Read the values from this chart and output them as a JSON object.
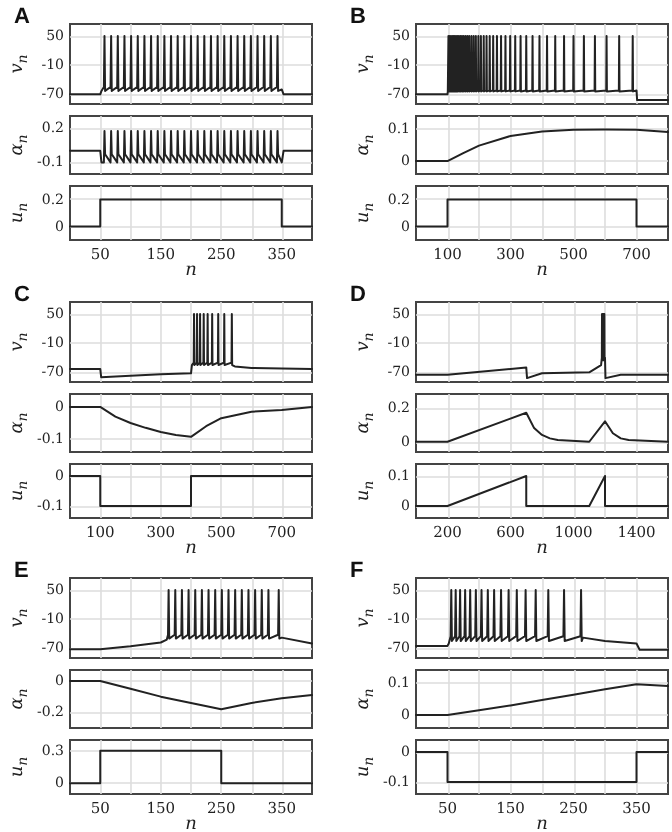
{
  "chart_data": [
    {
      "type": "line",
      "title": "A",
      "ylabel": "v$_{n}$",
      "color": "#222222",
      "grid": true,
      "tick_labels": "y",
      "xlim": [
        0,
        400
      ],
      "xticks": [
        50,
        {
          "value": 100,
          "label": null
        },
        150,
        {
          "value": 200,
          "label": null
        },
        250,
        {
          "value": 300,
          "label": null
        },
        350
      ],
      "ylim": [
        -90,
        75
      ],
      "yticks": [
        -70,
        -10,
        50
      ],
      "x": [
        0,
        50,
        52,
        56,
        57,
        58,
        67,
        68,
        69,
        78,
        79,
        80,
        89,
        90,
        91,
        100,
        101,
        102,
        111,
        112,
        113,
        122,
        123,
        124,
        133,
        134,
        135,
        144,
        145,
        146,
        155,
        156,
        157,
        166,
        167,
        168,
        177,
        178,
        179,
        188,
        189,
        190,
        199,
        200,
        201,
        210,
        211,
        212,
        221,
        222,
        223,
        232,
        233,
        234,
        243,
        244,
        245,
        254,
        255,
        256,
        265,
        266,
        267,
        276,
        277,
        278,
        287,
        288,
        289,
        298,
        299,
        300,
        309,
        310,
        311,
        320,
        321,
        322,
        331,
        332,
        333,
        342,
        343,
        344,
        350,
        353,
        400
      ],
      "values": [
        -70,
        -70,
        -63,
        -55,
        50,
        -63,
        -55,
        50,
        -63,
        -55,
        50,
        -63,
        -55,
        50,
        -63,
        -55,
        50,
        -63,
        -55,
        50,
        -63,
        -55,
        50,
        -63,
        -55,
        50,
        -63,
        -55,
        50,
        -63,
        -55,
        50,
        -63,
        -55,
        50,
        -63,
        -55,
        50,
        -63,
        -55,
        50,
        -63,
        -55,
        50,
        -63,
        -55,
        50,
        -63,
        -55,
        50,
        -63,
        -55,
        50,
        -63,
        -55,
        50,
        -63,
        -55,
        50,
        -63,
        -55,
        50,
        -63,
        -55,
        50,
        -63,
        -55,
        50,
        -63,
        -55,
        50,
        -63,
        -55,
        50,
        -63,
        -55,
        50,
        -63,
        -55,
        50,
        -63,
        -55,
        50,
        -63,
        -60,
        -70,
        -70
      ]
    },
    {
      "type": "line",
      "ylabel": "α$_{n}$",
      "color": "#222222",
      "grid": true,
      "tick_labels": "y",
      "xlim": [
        0,
        400
      ],
      "xticks": [
        50,
        {
          "value": 100,
          "label": null
        },
        150,
        {
          "value": 200,
          "label": null
        },
        250,
        {
          "value": 300,
          "label": null
        },
        350
      ],
      "ylim": [
        -0.2,
        0.3
      ],
      "yticks": [
        -0.1,
        0.2
      ],
      "x": [
        0,
        50,
        52,
        56,
        57,
        58,
        67,
        68,
        69,
        78,
        79,
        80,
        89,
        90,
        91,
        100,
        101,
        102,
        111,
        112,
        113,
        122,
        123,
        124,
        133,
        134,
        135,
        144,
        145,
        146,
        155,
        156,
        157,
        166,
        167,
        168,
        177,
        178,
        179,
        188,
        189,
        190,
        199,
        200,
        201,
        210,
        211,
        212,
        221,
        222,
        223,
        232,
        233,
        234,
        243,
        244,
        245,
        254,
        255,
        256,
        265,
        266,
        267,
        276,
        277,
        278,
        287,
        288,
        289,
        298,
        299,
        300,
        309,
        310,
        311,
        320,
        321,
        322,
        331,
        332,
        333,
        342,
        343,
        344,
        350,
        353,
        400
      ],
      "values": [
        0,
        0,
        -0.1,
        -0.1,
        0.17,
        -0.03,
        -0.1,
        0.17,
        -0.03,
        -0.1,
        0.17,
        -0.03,
        -0.1,
        0.17,
        -0.03,
        -0.1,
        0.17,
        -0.03,
        -0.1,
        0.17,
        -0.03,
        -0.1,
        0.17,
        -0.03,
        -0.1,
        0.17,
        -0.03,
        -0.1,
        0.17,
        -0.03,
        -0.1,
        0.17,
        -0.03,
        -0.1,
        0.17,
        -0.03,
        -0.1,
        0.17,
        -0.03,
        -0.1,
        0.17,
        -0.03,
        -0.1,
        0.17,
        -0.03,
        -0.1,
        0.17,
        -0.03,
        -0.1,
        0.17,
        -0.03,
        -0.1,
        0.17,
        -0.03,
        -0.1,
        0.17,
        -0.03,
        -0.1,
        0.17,
        -0.03,
        -0.1,
        0.17,
        -0.03,
        -0.1,
        0.17,
        -0.03,
        -0.1,
        0.17,
        -0.03,
        -0.1,
        0.17,
        -0.03,
        -0.1,
        0.17,
        -0.03,
        -0.1,
        0.17,
        -0.03,
        -0.1,
        0.17,
        -0.03,
        -0.1,
        0.17,
        -0.03,
        -0.1,
        0,
        0
      ]
    },
    {
      "type": "step",
      "ylabel": "u$_{n}$",
      "xlabel": "n",
      "color": "#222222",
      "grid": true,
      "xlim": [
        0,
        400
      ],
      "xticks": [
        50,
        {
          "value": 100,
          "label": null
        },
        150,
        {
          "value": 200,
          "label": null
        },
        250,
        {
          "value": 300,
          "label": null
        },
        350
      ],
      "ylim": [
        -0.1,
        0.3
      ],
      "yticks": [
        0,
        0.2
      ],
      "x": [
        0,
        50,
        350,
        400
      ],
      "values": [
        0,
        0.2,
        0,
        0
      ]
    },
    {
      "type": "line",
      "title": "B",
      "ylabel": "v$_{n}$",
      "color": "#222222",
      "grid": true,
      "tick_labels": "y",
      "xlim": [
        0,
        800
      ],
      "xticks": [
        100,
        {
          "value": 200,
          "label": null
        },
        300,
        {
          "value": 400,
          "label": null
        },
        500,
        {
          "value": 600,
          "label": null
        },
        700
      ],
      "ylim": [
        -90,
        75
      ],
      "yticks": [
        -70,
        -10,
        50
      ],
      "x": [
        0,
        100,
        101,
        102,
        103,
        104,
        106,
        107,
        108,
        110,
        111,
        112,
        114,
        115,
        116,
        118,
        119,
        120,
        122,
        123,
        124,
        126,
        127,
        128,
        130,
        131,
        132,
        135,
        136,
        137,
        140,
        141,
        142,
        145,
        146,
        147,
        150,
        151,
        152,
        156,
        157,
        158,
        162,
        163,
        164,
        168,
        169,
        170,
        175,
        176,
        177,
        182,
        183,
        184,
        189,
        190,
        191,
        197,
        198,
        199,
        205,
        206,
        207,
        214,
        215,
        216,
        223,
        224,
        225,
        233,
        234,
        235,
        244,
        245,
        246,
        256,
        257,
        258,
        269,
        270,
        271,
        283,
        284,
        285,
        298,
        299,
        300,
        314,
        315,
        316,
        331,
        332,
        333,
        349,
        350,
        351,
        369,
        370,
        371,
        391,
        392,
        393,
        415,
        416,
        417,
        441,
        442,
        443,
        469,
        470,
        471,
        499,
        500,
        501,
        532,
        533,
        534,
        567,
        568,
        569,
        604,
        605,
        606,
        644,
        645,
        646,
        687,
        688,
        689,
        700,
        702,
        800
      ],
      "values": [
        -70,
        -70,
        -64,
        -62,
        50,
        -64,
        -62,
        50,
        -64,
        -62,
        50,
        -64,
        -62,
        50,
        -64,
        -62,
        50,
        -64,
        -62,
        50,
        -64,
        -62,
        50,
        -64,
        -62,
        50,
        -64,
        -62,
        50,
        -64,
        -62,
        50,
        -64,
        -62,
        50,
        -64,
        -62,
        50,
        -64,
        -62,
        50,
        -64,
        -62,
        50,
        -64,
        -62,
        50,
        -64,
        -62,
        50,
        -64,
        -62,
        50,
        -64,
        -62,
        50,
        -64,
        -62,
        50,
        -64,
        -62,
        50,
        -64,
        -62,
        50,
        -64,
        -62,
        50,
        -64,
        -62,
        50,
        -64,
        -62,
        50,
        -64,
        -62,
        50,
        -64,
        -62,
        50,
        -64,
        -62,
        50,
        -64,
        -62,
        50,
        -64,
        -62,
        50,
        -64,
        -62,
        50,
        -64,
        -62,
        50,
        -64,
        -62,
        50,
        -64,
        -62,
        50,
        -64,
        -62,
        50,
        -64,
        -62,
        50,
        -64,
        -62,
        50,
        -64,
        -62,
        50,
        -64,
        -62,
        50,
        -64,
        -62,
        50,
        -64,
        -62,
        50,
        -64,
        -62,
        50,
        -64,
        -62,
        50,
        -64,
        -62,
        -82,
        -82
      ]
    },
    {
      "type": "line",
      "ylabel": "α$_{n}$",
      "color": "#222222",
      "grid": true,
      "tick_labels": "y",
      "xlim": [
        0,
        800
      ],
      "xticks": [
        100,
        {
          "value": 200,
          "label": null
        },
        300,
        {
          "value": 400,
          "label": null
        },
        500,
        {
          "value": 600,
          "label": null
        },
        700
      ],
      "ylim": [
        -0.04,
        0.14
      ],
      "yticks": [
        0,
        0.1
      ],
      "x": [
        0,
        100,
        150,
        200,
        300,
        400,
        500,
        600,
        700,
        800
      ],
      "values": [
        0,
        0,
        0.025,
        0.048,
        0.078,
        0.092,
        0.097,
        0.098,
        0.097,
        0.09
      ]
    },
    {
      "type": "step",
      "ylabel": "u$_{n}$",
      "xlabel": "n",
      "color": "#222222",
      "grid": true,
      "xlim": [
        0,
        800
      ],
      "xticks": [
        100,
        {
          "value": 200,
          "label": null
        },
        300,
        {
          "value": 400,
          "label": null
        },
        500,
        {
          "value": 600,
          "label": null
        },
        700
      ],
      "ylim": [
        -0.1,
        0.3
      ],
      "yticks": [
        0,
        0.2
      ],
      "x": [
        0,
        100,
        700,
        800
      ],
      "values": [
        0,
        0.2,
        0,
        0
      ]
    },
    {
      "type": "line",
      "title": "C",
      "ylabel": "v$_{n}$",
      "color": "#222222",
      "grid": true,
      "tick_labels": "y",
      "xlim": [
        0,
        800
      ],
      "xticks": [
        100,
        {
          "value": 200,
          "label": null
        },
        300,
        {
          "value": 400,
          "label": null
        },
        500,
        {
          "value": 600,
          "label": null
        },
        700
      ],
      "ylim": [
        -90,
        75
      ],
      "yticks": [
        -70,
        -10,
        50
      ],
      "x": [
        0,
        100,
        103,
        200,
        300,
        400,
        403,
        409,
        410,
        411,
        419,
        420,
        421,
        429,
        430,
        431,
        441,
        442,
        443,
        454,
        455,
        456,
        469,
        470,
        471,
        489,
        490,
        491,
        509,
        510,
        511,
        534,
        535,
        536,
        545,
        600,
        700,
        800
      ],
      "values": [
        -63,
        -63,
        -80,
        -77,
        -74,
        -72,
        -55,
        -50,
        50,
        -55,
        -50,
        50,
        -55,
        -50,
        50,
        -55,
        -50,
        50,
        -55,
        -50,
        50,
        -55,
        -50,
        50,
        -55,
        -50,
        50,
        -55,
        -50,
        50,
        -55,
        -50,
        50,
        -55,
        -58,
        -61,
        -62,
        -63
      ]
    },
    {
      "type": "line",
      "ylabel": "α$_{n}$",
      "color": "#222222",
      "grid": true,
      "tick_labels": "y",
      "xlim": [
        0,
        800
      ],
      "xticks": [
        100,
        {
          "value": 200,
          "label": null
        },
        300,
        {
          "value": 400,
          "label": null
        },
        500,
        {
          "value": 600,
          "label": null
        },
        700
      ],
      "ylim": [
        -0.14,
        0.04
      ],
      "yticks": [
        -0.1,
        0
      ],
      "x": [
        0,
        100,
        150,
        200,
        250,
        300,
        350,
        400,
        450,
        500,
        600,
        700,
        800
      ],
      "values": [
        0,
        0,
        -0.03,
        -0.05,
        -0.065,
        -0.078,
        -0.087,
        -0.093,
        -0.06,
        -0.035,
        -0.015,
        -0.01,
        0
      ]
    },
    {
      "type": "step",
      "ylabel": "u$_{n}$",
      "xlabel": "n",
      "color": "#222222",
      "grid": true,
      "xlim": [
        0,
        800
      ],
      "xticks": [
        100,
        {
          "value": 200,
          "label": null
        },
        300,
        {
          "value": 400,
          "label": null
        },
        500,
        {
          "value": 600,
          "label": null
        },
        700
      ],
      "ylim": [
        -0.14,
        0.04
      ],
      "yticks": [
        -0.1,
        0
      ],
      "x": [
        0,
        100,
        400,
        800
      ],
      "values": [
        0,
        -0.1,
        0,
        0
      ]
    },
    {
      "type": "line",
      "title": "D",
      "ylabel": "v$_{n}$",
      "color": "#222222",
      "grid": true,
      "tick_labels": "y",
      "xlim": [
        0,
        1600
      ],
      "xticks": [
        200,
        {
          "value": 400,
          "label": null
        },
        600,
        {
          "value": 800,
          "label": null
        },
        1000,
        {
          "value": 1200,
          "label": null
        },
        1400
      ],
      "ylim": [
        -90,
        75
      ],
      "yticks": [
        -70,
        -10,
        50
      ],
      "x": [
        0,
        200,
        700,
        705,
        800,
        1100,
        1175,
        1180,
        1181,
        1182,
        1185,
        1186,
        1187,
        1190,
        1191,
        1192,
        1195,
        1196,
        1197,
        1200,
        1203,
        1300,
        1600
      ],
      "values": [
        -75,
        -75,
        -60,
        -82,
        -72,
        -70,
        -55,
        -40,
        50,
        -45,
        -40,
        50,
        -45,
        -40,
        50,
        -45,
        -40,
        50,
        -45,
        -40,
        -82,
        -75,
        -75
      ]
    },
    {
      "type": "line",
      "ylabel": "α$_{n}$",
      "color": "#222222",
      "grid": true,
      "tick_labels": "y",
      "xlim": [
        0,
        1600
      ],
      "xticks": [
        200,
        {
          "value": 400,
          "label": null
        },
        600,
        {
          "value": 800,
          "label": null
        },
        1000,
        {
          "value": 1200,
          "label": null
        },
        1400
      ],
      "ylim": [
        -0.06,
        0.28
      ],
      "yticks": [
        0,
        0.2
      ],
      "x": [
        0,
        200,
        700,
        750,
        800,
        850,
        900,
        1100,
        1200,
        1250,
        1300,
        1350,
        1600
      ],
      "values": [
        0,
        0,
        0.17,
        0.08,
        0.04,
        0.02,
        0.01,
        0,
        0.12,
        0.05,
        0.02,
        0.01,
        0
      ]
    },
    {
      "type": "line",
      "ylabel": "u$_{n}$",
      "xlabel": "n",
      "color": "#222222",
      "grid": true,
      "xlim": [
        0,
        1600
      ],
      "xticks": [
        200,
        {
          "value": 400,
          "label": null
        },
        600,
        {
          "value": 800,
          "label": null
        },
        1000,
        {
          "value": 1200,
          "label": null
        },
        1400
      ],
      "ylim": [
        -0.04,
        0.14
      ],
      "yticks": [
        0,
        0.1
      ],
      "x": [
        0,
        200,
        700,
        700,
        1100,
        1200,
        1200,
        1600
      ],
      "values": [
        0,
        0,
        0.1,
        0,
        0,
        0.1,
        0,
        0
      ]
    },
    {
      "type": "line",
      "title": "E",
      "ylabel": "v$_{n}$",
      "color": "#222222",
      "grid": true,
      "tick_labels": "y",
      "xlim": [
        0,
        400
      ],
      "xticks": [
        50,
        {
          "value": 100,
          "label": null
        },
        150,
        {
          "value": 200,
          "label": null
        },
        250,
        {
          "value": 300,
          "label": null
        },
        350
      ],
      "ylim": [
        -90,
        75
      ],
      "yticks": [
        -70,
        -10,
        50
      ],
      "x": [
        0,
        50,
        100,
        150,
        160,
        162,
        163,
        164,
        173,
        174,
        175,
        184,
        185,
        186,
        195,
        196,
        197,
        206,
        207,
        208,
        217,
        218,
        219,
        228,
        229,
        230,
        239,
        240,
        241,
        250,
        251,
        252,
        261,
        262,
        263,
        272,
        273,
        274,
        283,
        284,
        285,
        294,
        295,
        296,
        305,
        306,
        307,
        316,
        317,
        318,
        327,
        328,
        329,
        344,
        345,
        346,
        350,
        400
      ],
      "values": [
        -72,
        -72,
        -66,
        -58,
        -52,
        -42,
        50,
        -50,
        -42,
        50,
        -50,
        -42,
        50,
        -50,
        -42,
        50,
        -50,
        -42,
        50,
        -50,
        -42,
        50,
        -50,
        -42,
        50,
        -50,
        -42,
        50,
        -50,
        -42,
        50,
        -50,
        -42,
        50,
        -50,
        -42,
        50,
        -50,
        -42,
        50,
        -50,
        -42,
        50,
        -50,
        -42,
        50,
        -50,
        -42,
        50,
        -50,
        -42,
        50,
        -50,
        -42,
        50,
        -50,
        -48,
        -60
      ]
    },
    {
      "type": "line",
      "ylabel": "α$_{n}$",
      "color": "#222222",
      "grid": true,
      "tick_labels": "y",
      "xlim": [
        0,
        400
      ],
      "xticks": [
        50,
        {
          "value": 100,
          "label": null
        },
        150,
        {
          "value": 200,
          "label": null
        },
        250,
        {
          "value": 300,
          "label": null
        },
        350
      ],
      "ylim": [
        -0.3,
        0.07
      ],
      "yticks": [
        -0.2,
        0
      ],
      "x": [
        0,
        50,
        100,
        150,
        200,
        250,
        300,
        350,
        400
      ],
      "values": [
        0,
        0,
        -0.05,
        -0.1,
        -0.14,
        -0.18,
        -0.14,
        -0.11,
        -0.09
      ]
    },
    {
      "type": "step",
      "ylabel": "u$_{n}$",
      "xlabel": "n",
      "color": "#222222",
      "grid": true,
      "xlim": [
        0,
        400
      ],
      "xticks": [
        50,
        {
          "value": 100,
          "label": null
        },
        150,
        {
          "value": 200,
          "label": null
        },
        250,
        {
          "value": 300,
          "label": null
        },
        350
      ],
      "ylim": [
        -0.1,
        0.4
      ],
      "yticks": [
        0,
        0.3
      ],
      "x": [
        0,
        50,
        250,
        400
      ],
      "values": [
        0,
        0.3,
        0,
        0
      ]
    },
    {
      "type": "line",
      "title": "F",
      "ylabel": "v$_{n}$",
      "color": "#222222",
      "grid": true,
      "tick_labels": "y",
      "xlim": [
        0,
        400
      ],
      "xticks": [
        50,
        {
          "value": 100,
          "label": null
        },
        150,
        {
          "value": 200,
          "label": null
        },
        250,
        {
          "value": 300,
          "label": null
        },
        350
      ],
      "ylim": [
        -90,
        75
      ],
      "yticks": [
        -70,
        -10,
        50
      ],
      "x": [
        0,
        50,
        52,
        55,
        56,
        57,
        62,
        63,
        64,
        69,
        70,
        71,
        77,
        78,
        79,
        85,
        86,
        87,
        94,
        95,
        96,
        103,
        104,
        105,
        113,
        114,
        115,
        123,
        124,
        125,
        134,
        135,
        136,
        146,
        147,
        148,
        159,
        160,
        161,
        173,
        174,
        175,
        189,
        190,
        191,
        209,
        210,
        211,
        234,
        235,
        236,
        261,
        262,
        263,
        265,
        300,
        350,
        355,
        400
      ],
      "values": [
        -65,
        -65,
        -60,
        -45,
        50,
        -55,
        -45,
        50,
        -55,
        -45,
        50,
        -55,
        -45,
        50,
        -55,
        -45,
        50,
        -55,
        -45,
        50,
        -55,
        -45,
        50,
        -55,
        -45,
        50,
        -55,
        -45,
        50,
        -55,
        -45,
        50,
        -55,
        -45,
        50,
        -55,
        -45,
        50,
        -55,
        -45,
        50,
        -55,
        -45,
        50,
        -55,
        -45,
        50,
        -55,
        -45,
        50,
        -55,
        -45,
        50,
        -55,
        -48,
        -55,
        -60,
        -73,
        -73
      ]
    },
    {
      "type": "line",
      "ylabel": "α$_{n}$",
      "color": "#222222",
      "grid": true,
      "tick_labels": "y",
      "xlim": [
        0,
        400
      ],
      "xticks": [
        50,
        {
          "value": 100,
          "label": null
        },
        150,
        {
          "value": 200,
          "label": null
        },
        250,
        {
          "value": 300,
          "label": null
        },
        350
      ],
      "ylim": [
        -0.04,
        0.14
      ],
      "yticks": [
        0,
        0.1
      ],
      "x": [
        0,
        50,
        100,
        150,
        200,
        250,
        300,
        350,
        400
      ],
      "values": [
        0,
        0,
        0.015,
        0.03,
        0.047,
        0.063,
        0.08,
        0.096,
        0.09
      ]
    },
    {
      "type": "step",
      "ylabel": "u$_{n}$",
      "xlabel": "n",
      "color": "#222222",
      "grid": true,
      "xlim": [
        0,
        400
      ],
      "xticks": [
        50,
        {
          "value": 100,
          "label": null
        },
        150,
        {
          "value": 200,
          "label": null
        },
        250,
        {
          "value": 300,
          "label": null
        },
        350
      ],
      "ylim": [
        -0.14,
        0.04
      ],
      "yticks": [
        -0.1,
        0
      ],
      "x": [
        0,
        50,
        350,
        400
      ],
      "values": [
        0,
        -0.1,
        0,
        0
      ]
    }
  ]
}
